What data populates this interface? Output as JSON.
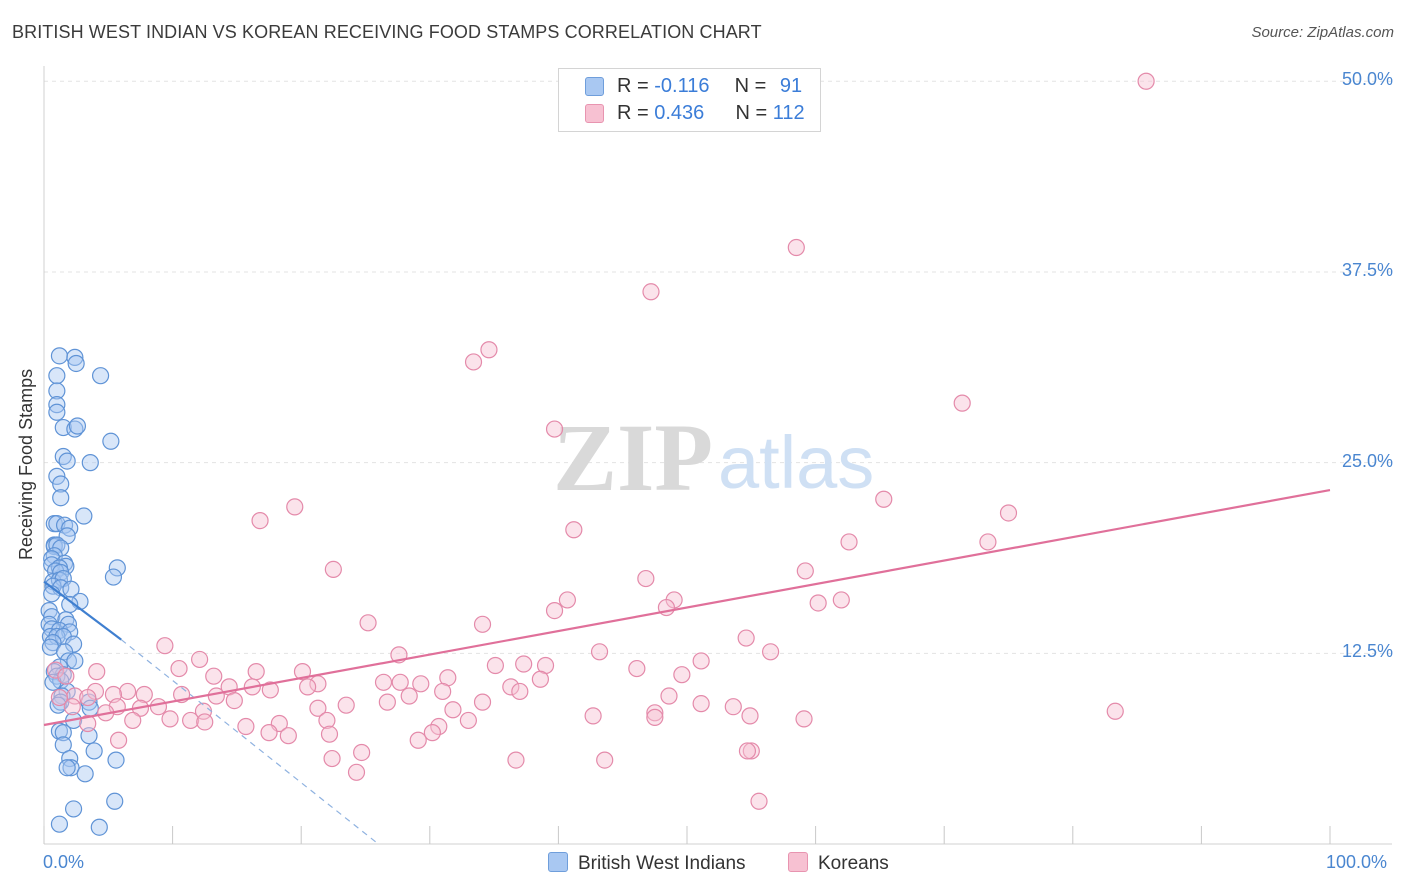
{
  "title": "BRITISH WEST INDIAN VS KOREAN RECEIVING FOOD STAMPS CORRELATION CHART",
  "source": "Source: ZipAtlas.com",
  "watermark": {
    "zip": "ZIP",
    "atlas": "atlas"
  },
  "legend": {
    "rows": [
      {
        "r_label": "R = ",
        "r_value": "-0.116",
        "n_label": "N = ",
        "n_value": "91",
        "color": "#a9c8f2",
        "border": "#6f9edb"
      },
      {
        "r_label": "R = ",
        "r_value": "0.436",
        "n_label": "N = ",
        "n_value": "112",
        "color": "#f7c1d2",
        "border": "#e894b0"
      }
    ]
  },
  "bottom_legend": [
    {
      "label": "British West Indians",
      "color": "#a9c8f2",
      "border": "#6f9edb"
    },
    {
      "label": "Koreans",
      "color": "#f7c1d2",
      "border": "#e894b0"
    }
  ],
  "chart_data": {
    "type": "scatter",
    "title": "BRITISH WEST INDIAN VS KOREAN RECEIVING FOOD STAMPS CORRELATION CHART",
    "xlabel": "",
    "ylabel": "Receiving Food Stamps",
    "xlim": [
      0,
      100
    ],
    "ylim": [
      0,
      51
    ],
    "x_tick_labels": [
      "0.0%",
      "100.0%"
    ],
    "y_ticks": [
      12.5,
      25.0,
      37.5,
      50.0
    ],
    "y_tick_labels": [
      "12.5%",
      "25.0%",
      "37.5%",
      "50.0%"
    ],
    "grid": true,
    "legend_position": "top-center",
    "colors": {
      "British West Indians": "#4a86d0",
      "Koreans": "#e0709a"
    },
    "series": [
      {
        "name": "British West Indians",
        "r": -0.116,
        "n": 91,
        "trend": {
          "x": [
            0,
            6
          ],
          "y": [
            17.2,
            13.4
          ],
          "dashed_extension_to": [
            26,
            0
          ]
        },
        "points": [
          [
            1.2,
            32.0
          ],
          [
            2.4,
            31.9
          ],
          [
            2.5,
            31.5
          ],
          [
            4.4,
            30.7
          ],
          [
            1.0,
            30.7
          ],
          [
            1.0,
            29.7
          ],
          [
            1.0,
            28.8
          ],
          [
            1.0,
            28.3
          ],
          [
            1.5,
            27.3
          ],
          [
            2.4,
            27.2
          ],
          [
            2.6,
            27.4
          ],
          [
            5.2,
            26.4
          ],
          [
            1.5,
            25.4
          ],
          [
            1.8,
            25.1
          ],
          [
            3.6,
            25.0
          ],
          [
            1.0,
            24.1
          ],
          [
            1.3,
            23.6
          ],
          [
            1.3,
            22.7
          ],
          [
            3.1,
            21.5
          ],
          [
            0.8,
            21.0
          ],
          [
            1.0,
            21.0
          ],
          [
            1.6,
            20.9
          ],
          [
            2.0,
            20.7
          ],
          [
            1.8,
            20.2
          ],
          [
            0.8,
            19.6
          ],
          [
            0.8,
            19.5
          ],
          [
            1.0,
            19.6
          ],
          [
            1.3,
            19.4
          ],
          [
            0.8,
            18.9
          ],
          [
            0.6,
            18.7
          ],
          [
            1.6,
            18.4
          ],
          [
            1.7,
            18.2
          ],
          [
            0.6,
            18.3
          ],
          [
            1.2,
            18.1
          ],
          [
            5.7,
            18.1
          ],
          [
            0.9,
            17.9
          ],
          [
            1.3,
            17.8
          ],
          [
            5.4,
            17.5
          ],
          [
            0.7,
            17.2
          ],
          [
            1.2,
            17.3
          ],
          [
            1.5,
            17.4
          ],
          [
            0.7,
            16.9
          ],
          [
            1.3,
            16.8
          ],
          [
            2.1,
            16.7
          ],
          [
            0.6,
            16.4
          ],
          [
            2.8,
            15.9
          ],
          [
            2.0,
            15.7
          ],
          [
            0.4,
            15.3
          ],
          [
            0.6,
            14.9
          ],
          [
            1.7,
            14.7
          ],
          [
            0.4,
            14.4
          ],
          [
            1.9,
            14.4
          ],
          [
            0.6,
            14.1
          ],
          [
            1.2,
            14.0
          ],
          [
            2.0,
            13.9
          ],
          [
            0.5,
            13.6
          ],
          [
            1.0,
            13.6
          ],
          [
            1.5,
            13.6
          ],
          [
            0.7,
            13.2
          ],
          [
            2.3,
            13.1
          ],
          [
            0.5,
            12.9
          ],
          [
            1.6,
            12.6
          ],
          [
            1.9,
            12.0
          ],
          [
            2.4,
            12.0
          ],
          [
            1.2,
            11.6
          ],
          [
            0.8,
            11.3
          ],
          [
            1.5,
            11.1
          ],
          [
            1.0,
            11.0
          ],
          [
            1.3,
            10.7
          ],
          [
            0.7,
            10.6
          ],
          [
            1.8,
            10.0
          ],
          [
            1.4,
            9.7
          ],
          [
            1.3,
            9.3
          ],
          [
            1.1,
            9.1
          ],
          [
            3.5,
            9.3
          ],
          [
            3.6,
            8.9
          ],
          [
            2.3,
            8.1
          ],
          [
            1.2,
            7.4
          ],
          [
            1.5,
            7.3
          ],
          [
            3.5,
            7.1
          ],
          [
            1.5,
            6.5
          ],
          [
            3.9,
            6.1
          ],
          [
            2.0,
            5.6
          ],
          [
            5.6,
            5.5
          ],
          [
            2.1,
            5.0
          ],
          [
            1.8,
            5.0
          ],
          [
            3.2,
            4.6
          ],
          [
            5.5,
            2.8
          ],
          [
            2.3,
            2.3
          ],
          [
            1.2,
            1.3
          ],
          [
            4.3,
            1.1
          ]
        ]
      },
      {
        "name": "Koreans",
        "r": 0.436,
        "n": 112,
        "trend": {
          "x": [
            0,
            100
          ],
          "y": [
            7.8,
            23.2
          ]
        },
        "points": [
          [
            85.7,
            50.0
          ],
          [
            58.5,
            39.1
          ],
          [
            47.2,
            36.2
          ],
          [
            34.6,
            32.4
          ],
          [
            33.4,
            31.6
          ],
          [
            71.4,
            28.9
          ],
          [
            39.7,
            27.2
          ],
          [
            65.3,
            22.6
          ],
          [
            19.5,
            22.1
          ],
          [
            16.8,
            21.2
          ],
          [
            75.0,
            21.7
          ],
          [
            41.2,
            20.6
          ],
          [
            62.6,
            19.8
          ],
          [
            73.4,
            19.8
          ],
          [
            22.5,
            18.0
          ],
          [
            59.2,
            17.9
          ],
          [
            46.8,
            17.4
          ],
          [
            49.0,
            16.0
          ],
          [
            40.7,
            16.0
          ],
          [
            62.0,
            16.0
          ],
          [
            60.2,
            15.8
          ],
          [
            48.4,
            15.5
          ],
          [
            39.7,
            15.3
          ],
          [
            25.2,
            14.5
          ],
          [
            34.1,
            14.4
          ],
          [
            54.6,
            13.5
          ],
          [
            9.4,
            13.0
          ],
          [
            56.5,
            12.6
          ],
          [
            43.2,
            12.6
          ],
          [
            27.6,
            12.4
          ],
          [
            12.1,
            12.1
          ],
          [
            51.1,
            12.0
          ],
          [
            37.3,
            11.8
          ],
          [
            35.1,
            11.7
          ],
          [
            10.5,
            11.5
          ],
          [
            16.5,
            11.3
          ],
          [
            39.0,
            11.7
          ],
          [
            0.9,
            11.4
          ],
          [
            46.1,
            11.5
          ],
          [
            4.1,
            11.3
          ],
          [
            13.2,
            11.0
          ],
          [
            1.7,
            11.0
          ],
          [
            20.1,
            11.3
          ],
          [
            49.6,
            11.1
          ],
          [
            31.4,
            10.9
          ],
          [
            38.6,
            10.8
          ],
          [
            27.7,
            10.6
          ],
          [
            26.4,
            10.6
          ],
          [
            29.3,
            10.5
          ],
          [
            21.3,
            10.5
          ],
          [
            4.0,
            10.0
          ],
          [
            14.4,
            10.3
          ],
          [
            20.5,
            10.3
          ],
          [
            36.3,
            10.3
          ],
          [
            16.2,
            10.3
          ],
          [
            17.6,
            10.1
          ],
          [
            31.0,
            10.0
          ],
          [
            37.0,
            10.0
          ],
          [
            6.5,
            10.0
          ],
          [
            10.7,
            9.8
          ],
          [
            5.4,
            9.8
          ],
          [
            2.4,
            9.7
          ],
          [
            13.4,
            9.7
          ],
          [
            3.4,
            9.6
          ],
          [
            7.8,
            9.8
          ],
          [
            28.4,
            9.7
          ],
          [
            48.6,
            9.7
          ],
          [
            1.2,
            9.6
          ],
          [
            14.8,
            9.4
          ],
          [
            34.1,
            9.3
          ],
          [
            26.7,
            9.3
          ],
          [
            51.1,
            9.2
          ],
          [
            53.6,
            9.0
          ],
          [
            23.5,
            9.1
          ],
          [
            8.9,
            9.0
          ],
          [
            5.7,
            9.0
          ],
          [
            2.2,
            9.0
          ],
          [
            7.5,
            8.9
          ],
          [
            21.3,
            8.9
          ],
          [
            31.8,
            8.8
          ],
          [
            12.4,
            8.7
          ],
          [
            4.8,
            8.6
          ],
          [
            83.3,
            8.7
          ],
          [
            47.5,
            8.6
          ],
          [
            42.7,
            8.4
          ],
          [
            54.9,
            8.4
          ],
          [
            47.5,
            8.3
          ],
          [
            59.1,
            8.2
          ],
          [
            6.9,
            8.1
          ],
          [
            33.0,
            8.1
          ],
          [
            22.0,
            8.1
          ],
          [
            11.4,
            8.1
          ],
          [
            12.5,
            8.0
          ],
          [
            18.3,
            7.9
          ],
          [
            30.7,
            7.7
          ],
          [
            15.7,
            7.7
          ],
          [
            30.2,
            7.3
          ],
          [
            17.5,
            7.3
          ],
          [
            22.2,
            7.2
          ],
          [
            19.0,
            7.1
          ],
          [
            29.1,
            6.8
          ],
          [
            5.8,
            6.8
          ],
          [
            55.0,
            6.1
          ],
          [
            24.7,
            6.0
          ],
          [
            22.4,
            5.6
          ],
          [
            43.6,
            5.5
          ],
          [
            36.7,
            5.5
          ],
          [
            24.3,
            4.7
          ],
          [
            55.6,
            2.8
          ],
          [
            54.7,
            6.1
          ],
          [
            9.8,
            8.2
          ],
          [
            3.4,
            7.9
          ]
        ]
      }
    ]
  }
}
